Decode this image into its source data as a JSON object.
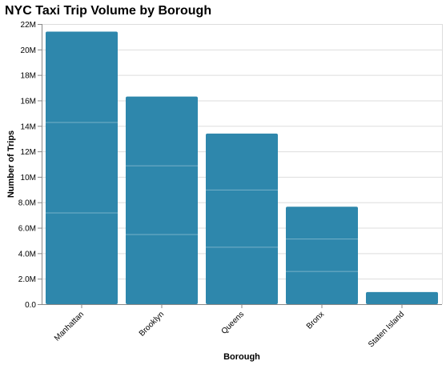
{
  "chart_data": {
    "type": "bar",
    "title": "NYC Taxi Trip Volume by Borough",
    "xlabel": "Borough",
    "ylabel": "Number of Trips",
    "categories": [
      "Manhattan",
      "Brooklyn",
      "Queens",
      "Bronx",
      "Staten Island"
    ],
    "values": [
      21400000,
      16300000,
      13400000,
      7650000,
      950000
    ],
    "segments": [
      [
        7200000,
        7100000,
        7100000
      ],
      [
        5500000,
        5400000,
        5400000
      ],
      [
        4500000,
        4500000,
        4400000
      ],
      [
        2600000,
        2550000,
        2500000
      ],
      [
        950000
      ]
    ],
    "ylim": [
      0,
      22000000
    ],
    "yticks": [
      0,
      2000000,
      4000000,
      6000000,
      8000000,
      10000000,
      12000000,
      14000000,
      16000000,
      18000000,
      20000000,
      22000000
    ],
    "ytick_labels": [
      "0.0",
      "2.0M",
      "4.0M",
      "6.0M",
      "8.0M",
      "10M",
      "12M",
      "14M",
      "16M",
      "18M",
      "20M",
      "22M"
    ],
    "grid": true,
    "bar_color": "#2e87ac"
  }
}
